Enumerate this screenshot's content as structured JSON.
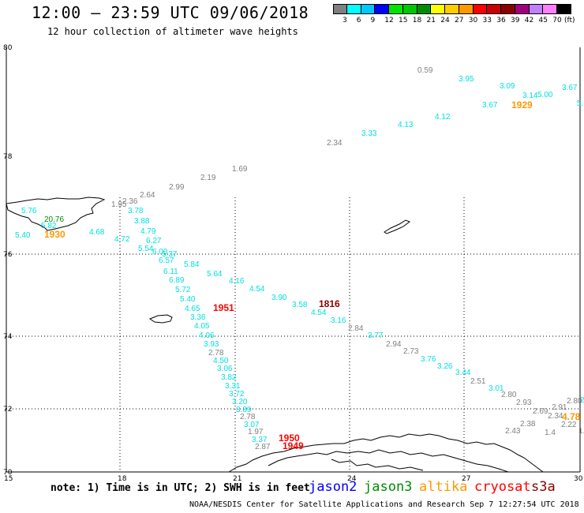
{
  "header": {
    "title": "12:00 – 23:59 UTC 09/06/2018",
    "subtitle": "12 hour collection of altimeter wave heights"
  },
  "color_scale": {
    "colors": [
      "#7f7f7f",
      "#00ffff",
      "#00c8ff",
      "#0000ff",
      "#00e400",
      "#00c800",
      "#008c00",
      "#ffff00",
      "#ffcc00",
      "#ff9900",
      "#ff0000",
      "#c80000",
      "#8b0000",
      "#a0007d",
      "#c080ff",
      "#ff80ff",
      "#000000"
    ],
    "ticks": [
      "3",
      "6",
      "9",
      "12",
      "15",
      "18",
      "21",
      "24",
      "27",
      "30",
      "33",
      "36",
      "39",
      "42",
      "45",
      "70",
      "(ft)"
    ]
  },
  "axes": {
    "x_ticks": [
      "15",
      "18",
      "21",
      "24",
      "27",
      "30"
    ],
    "y_ticks": [
      "80",
      "78",
      "76",
      "74",
      "72",
      "70"
    ]
  },
  "satellite_colors": {
    "jason2": "#0000ff",
    "jason3": "#008c00",
    "altika": "#ff9900",
    "cryosat": "#ff0000",
    "s3a": "#8b0000",
    "other": "#7f7f7f",
    "cyan": "#00e0e0"
  },
  "wave_labels": [
    {
      "t": "0.59",
      "c": "other"
    },
    {
      "t": "3.95",
      "c": "cyan"
    },
    {
      "t": "3.09",
      "c": "cyan"
    },
    {
      "t": "3.67",
      "c": "cyan"
    },
    {
      "t": "3.14",
      "c": "cyan"
    },
    {
      "t": "5.00",
      "c": "cyan"
    },
    {
      "t": "3.67",
      "c": "cyan"
    },
    {
      "t": "5.",
      "c": "cyan"
    },
    {
      "t": "1929",
      "c": "altika"
    },
    {
      "t": "4.12",
      "c": "cyan"
    },
    {
      "t": "4.13",
      "c": "cyan"
    },
    {
      "t": "3.33",
      "c": "cyan"
    },
    {
      "t": "2.34",
      "c": "other"
    },
    {
      "t": "1.69",
      "c": "other"
    },
    {
      "t": "2.19",
      "c": "other"
    },
    {
      "t": "2.99",
      "c": "other"
    },
    {
      "t": "2.64",
      "c": "other"
    },
    {
      "t": "2.36",
      "c": "other"
    },
    {
      "t": "1.95",
      "c": "other"
    },
    {
      "t": "3.78",
      "c": "cyan"
    },
    {
      "t": "3.88",
      "c": "cyan"
    },
    {
      "t": "4.79",
      "c": "cyan"
    },
    {
      "t": "4.72",
      "c": "cyan"
    },
    {
      "t": "6.27",
      "c": "cyan"
    },
    {
      "t": "5.54",
      "c": "cyan"
    },
    {
      "t": "6.00",
      "c": "cyan"
    },
    {
      "t": "5.37",
      "c": "cyan"
    },
    {
      "t": "6.57",
      "c": "cyan"
    },
    {
      "t": "5.84",
      "c": "cyan"
    },
    {
      "t": "6.11",
      "c": "cyan"
    },
    {
      "t": "5.64",
      "c": "cyan"
    },
    {
      "t": "6.89",
      "c": "cyan"
    },
    {
      "t": "4.16",
      "c": "cyan"
    },
    {
      "t": "5.72",
      "c": "cyan"
    },
    {
      "t": "4.54",
      "c": "cyan"
    },
    {
      "t": "5.40",
      "c": "cyan"
    },
    {
      "t": "3.90",
      "c": "cyan"
    },
    {
      "t": "4.65",
      "c": "cyan"
    },
    {
      "t": "3.58",
      "c": "cyan"
    },
    {
      "t": "1951",
      "c": "cryosat"
    },
    {
      "t": "1816",
      "c": "s3a"
    },
    {
      "t": "4.54",
      "c": "cyan"
    },
    {
      "t": "3.36",
      "c": "cyan"
    },
    {
      "t": "3.16",
      "c": "cyan"
    },
    {
      "t": "4.05",
      "c": "cyan"
    },
    {
      "t": "2.84",
      "c": "other"
    },
    {
      "t": "4.06",
      "c": "cyan"
    },
    {
      "t": "3.77",
      "c": "cyan"
    },
    {
      "t": "3.93",
      "c": "cyan"
    },
    {
      "t": "2.94",
      "c": "other"
    },
    {
      "t": "2.78",
      "c": "other"
    },
    {
      "t": "2.73",
      "c": "other"
    },
    {
      "t": "4.50",
      "c": "cyan"
    },
    {
      "t": "3.76",
      "c": "cyan"
    },
    {
      "t": "3.06",
      "c": "cyan"
    },
    {
      "t": "3.26",
      "c": "cyan"
    },
    {
      "t": "3.82",
      "c": "cyan"
    },
    {
      "t": "3.44",
      "c": "cyan"
    },
    {
      "t": "3.31",
      "c": "cyan"
    },
    {
      "t": "2.51",
      "c": "other"
    },
    {
      "t": "3.72",
      "c": "cyan"
    },
    {
      "t": "3.01",
      "c": "cyan"
    },
    {
      "t": "3.20",
      "c": "cyan"
    },
    {
      "t": "2.80",
      "c": "other"
    },
    {
      "t": "3.89",
      "c": "cyan"
    },
    {
      "t": "2.93",
      "c": "other"
    },
    {
      "t": "2.80",
      "c": "other"
    },
    {
      "t": "2.78",
      "c": "other"
    },
    {
      "t": "2.91",
      "c": "other"
    },
    {
      "t": "3.07",
      "c": "cyan"
    },
    {
      "t": "2.69",
      "c": "other"
    },
    {
      "t": "2.34",
      "c": "other"
    },
    {
      "t": "2.38",
      "c": "other"
    },
    {
      "t": "1.97",
      "c": "other"
    },
    {
      "t": "3.37",
      "c": "cyan"
    },
    {
      "t": "2.43",
      "c": "other"
    },
    {
      "t": "2.22",
      "c": "other"
    },
    {
      "t": "2.87",
      "c": "other"
    },
    {
      "t": "1950",
      "c": "cryosat"
    },
    {
      "t": "1949",
      "c": "cryosat"
    },
    {
      "t": "1.4",
      "c": "other"
    },
    {
      "t": "4.78",
      "c": "altika"
    },
    {
      "t": "1.6",
      "c": "other"
    },
    {
      "t": "2",
      "c": "cyan"
    },
    {
      "t": "5.40",
      "c": "cyan"
    },
    {
      "t": "5.82",
      "c": "cyan"
    },
    {
      "t": "4.68",
      "c": "cyan"
    },
    {
      "t": "5.76",
      "c": "cyan"
    },
    {
      "t": "20.76",
      "c": "jason3"
    },
    {
      "t": "1930",
      "c": "altika"
    }
  ],
  "footer": {
    "note": "note: 1) Time is in UTC; 2) SWH is in feet",
    "credit": "NOAA/NESDIS Center for Satellite Applications and Research   Sep  7 12:27:54 UTC 2018",
    "satellites": [
      {
        "name": "jason2",
        "color": "#0000ff"
      },
      {
        "name": "jason3",
        "color": "#008c00"
      },
      {
        "name": "altika",
        "color": "#ff9900"
      },
      {
        "name": "cryosat",
        "color": "#ff0000"
      },
      {
        "name": "s3a",
        "color": "#8b0000"
      }
    ]
  }
}
